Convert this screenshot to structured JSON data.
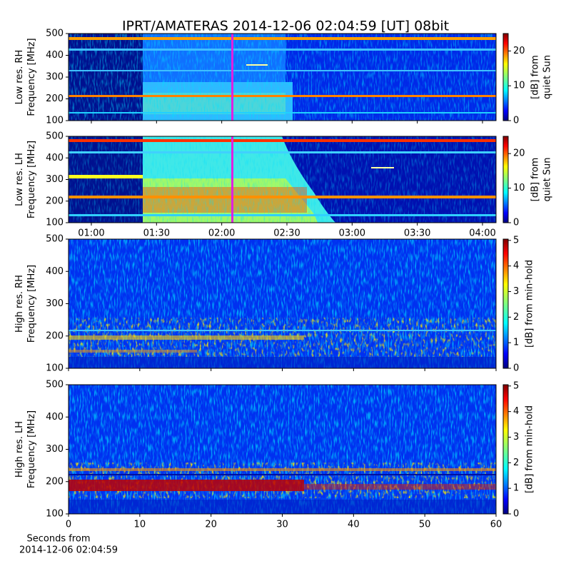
{
  "chart_data": [
    {
      "type": "heatmap",
      "title": "IPRT/AMATERAS 2014-12-06 02:04:59 [UT]   08bit",
      "ylabel": [
        "Low res. RH",
        "Frequency [MHz]"
      ],
      "ylim": [
        100,
        500
      ],
      "yticks": [
        100,
        200,
        300,
        400,
        500
      ],
      "colormap": "jet",
      "colorbar": {
        "label": [
          "[dB] from",
          "quiet Sun"
        ],
        "lim": [
          0,
          25
        ],
        "ticks": [
          0,
          10,
          20
        ]
      }
    },
    {
      "type": "heatmap",
      "ylabel": [
        "Low res. LH",
        "Frequency [MHz]"
      ],
      "ylim": [
        100,
        500
      ],
      "yticks": [
        100,
        200,
        300,
        400,
        500
      ],
      "xlim": [
        0.825,
        4.104
      ],
      "xticks": [
        {
          "value": 1,
          "label": "01:00"
        },
        {
          "value": 1.5,
          "label": "01:30"
        },
        {
          "value": 2,
          "label": "02:00"
        },
        {
          "value": 2.5,
          "label": "02:30"
        },
        {
          "value": 3,
          "label": "03:00"
        },
        {
          "value": 3.5,
          "label": "03:30"
        },
        {
          "value": 4,
          "label": "04:00"
        }
      ],
      "colormap": "jet",
      "colorbar": {
        "label": [
          "[dB] from",
          "quiet Sun"
        ],
        "lim": [
          0,
          25
        ],
        "ticks": [
          0,
          10,
          20
        ]
      }
    },
    {
      "type": "heatmap",
      "ylabel": [
        "High res. RH",
        "Frequency [MHz]"
      ],
      "ylim": [
        100,
        500
      ],
      "yticks": [
        100,
        200,
        300,
        400,
        500
      ],
      "colormap": "jet",
      "colorbar": {
        "label": [
          "[dB] from min-hold"
        ],
        "lim": [
          0,
          5.05
        ],
        "ticks": [
          0,
          1,
          2,
          3,
          4,
          5
        ]
      }
    },
    {
      "type": "heatmap",
      "ylabel": [
        "High res. LH",
        "Frequency [MHz]"
      ],
      "ylim": [
        100,
        500
      ],
      "yticks": [
        100,
        200,
        300,
        400,
        500
      ],
      "xlim": [
        0,
        60
      ],
      "xticks": [
        0,
        10,
        20,
        30,
        40,
        50,
        60
      ],
      "xlabel": [
        "Seconds from",
        "2014-12-06 02:04:59"
      ],
      "colormap": "jet",
      "colorbar": {
        "label": [
          "[dB] from min-hold"
        ],
        "lim": [
          0,
          5.05
        ],
        "ticks": [
          0,
          1,
          2,
          3,
          4,
          5
        ]
      }
    }
  ]
}
